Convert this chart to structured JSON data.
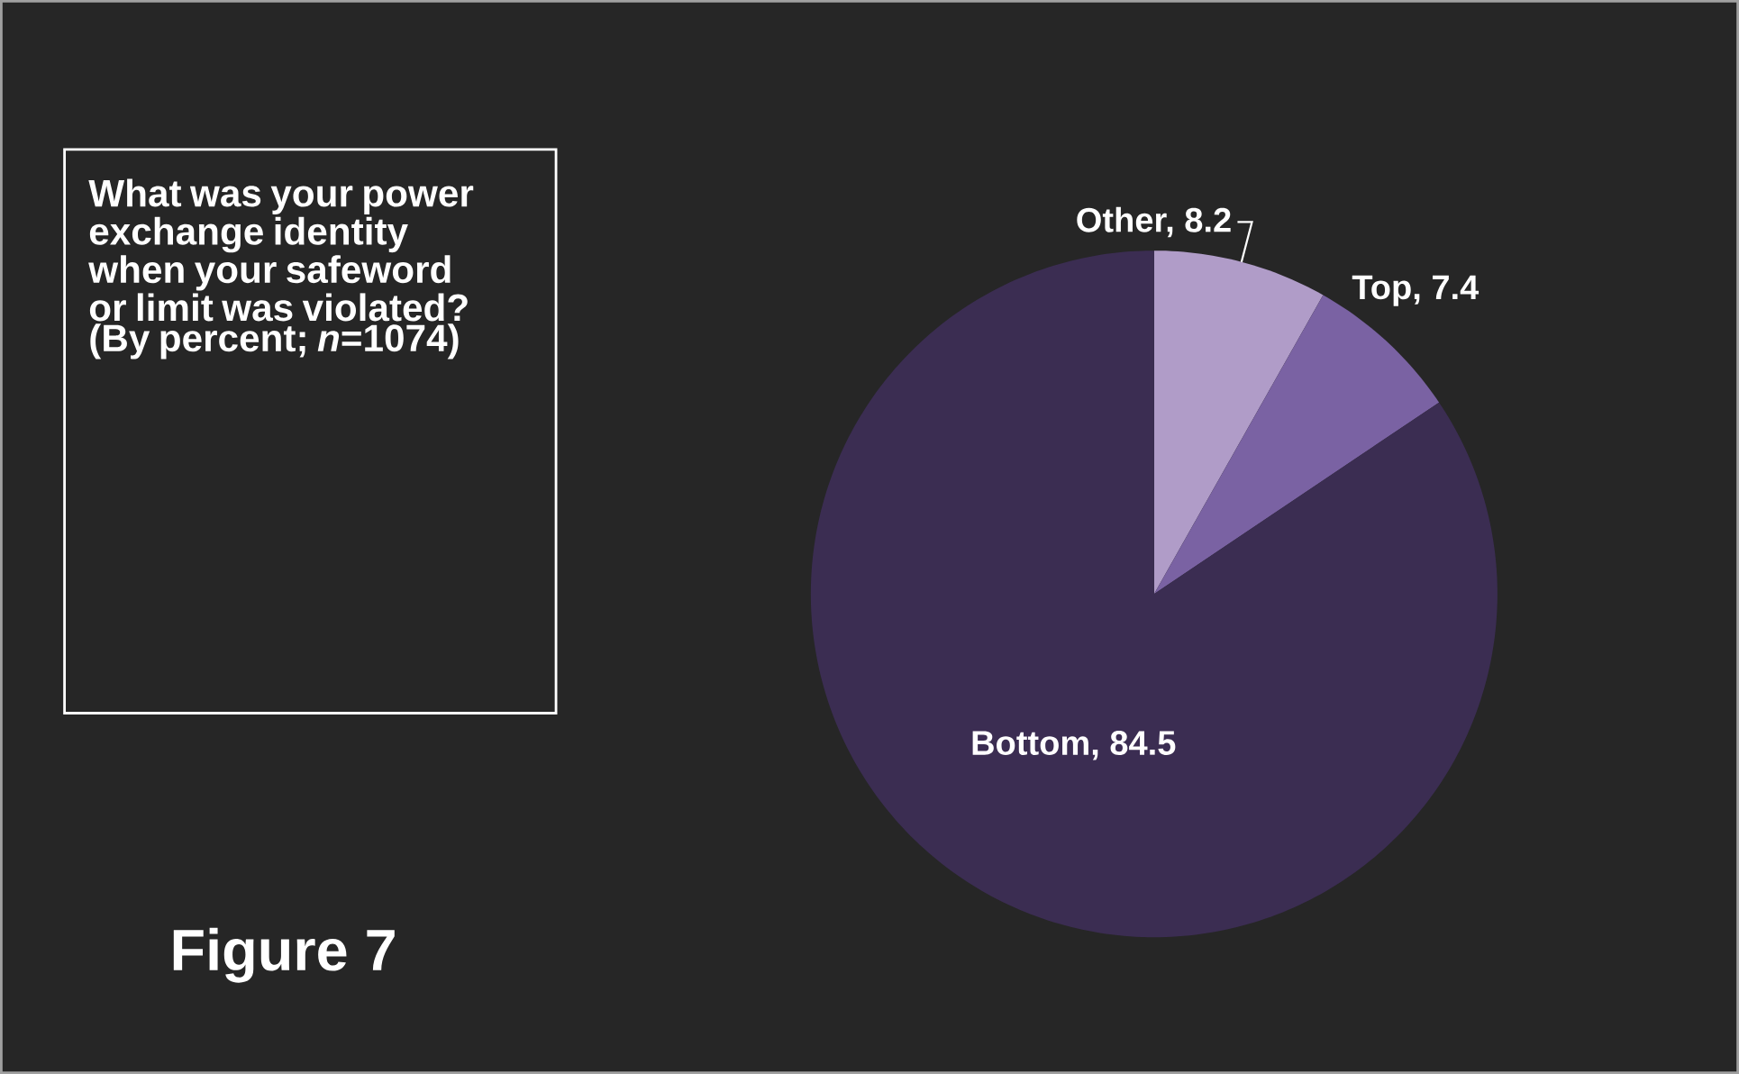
{
  "chart_data": {
    "type": "pie",
    "title": "What was your power exchange identity when your safeword or limit was violated? (By percent; *n*=1074)",
    "categories": [
      null,
      null,
      null
    ],
    "values": [
      8.2,
      7.4,
      84.5
    ],
    "colors": [
      "#b09cc8",
      "#7a62a3",
      "#3b2d52"
    ],
    "value_labels": [
      "Other, 8.2",
      "Top, 7.4",
      "Bottom, 84.5"
    ],
    "annotations": [
      "Figure 7"
    ]
  }
}
